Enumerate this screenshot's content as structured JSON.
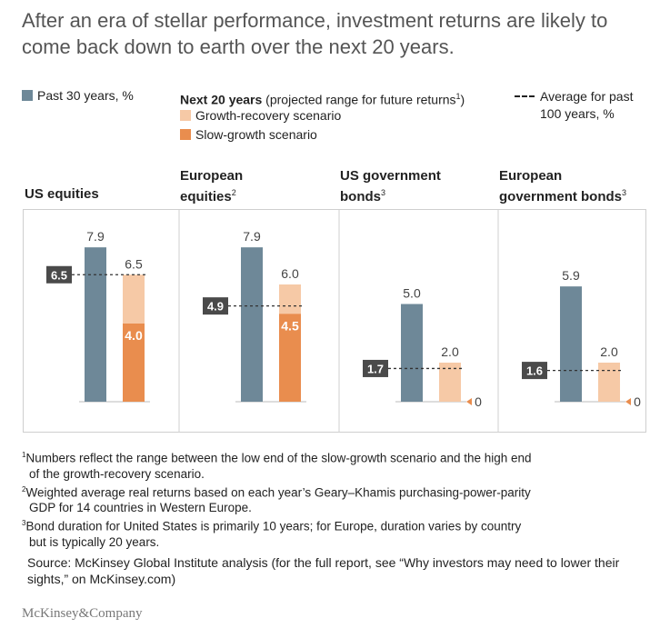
{
  "title": "After an era of stellar performance, investment returns are likely to come back down to earth over the next 20 years.",
  "legend": {
    "past": "Past 30 years, %",
    "next_bold": "Next 20 years",
    "next_rest": " (projected range for future returns",
    "next_sup": "1",
    "next_close": ")",
    "growth": "Growth-recovery scenario",
    "slow": "Slow-growth scenario",
    "avg_line1": "Average for past",
    "avg_line2": "100 years, %"
  },
  "colors": {
    "past": "#6e8898",
    "growth": "#f6c9a6",
    "slow": "#e98d4e",
    "avg_box": "#4a4a4a",
    "zero_marker": "#e98d4e"
  },
  "chart_data": {
    "type": "bar",
    "ylim": [
      0,
      8.5
    ],
    "panels": [
      {
        "name": "US equities",
        "sup": "",
        "past": 7.9,
        "slow": 4.0,
        "growth": 6.5,
        "average": 6.5,
        "past_label": "7.9",
        "growth_label": "6.5",
        "slow_label": "4.0",
        "avg_label": "6.5",
        "zero_label": ""
      },
      {
        "name": "European equities",
        "sup": "2",
        "past": 7.9,
        "slow": 4.5,
        "growth": 6.0,
        "average": 4.9,
        "past_label": "7.9",
        "growth_label": "6.0",
        "slow_label": "4.5",
        "avg_label": "4.9",
        "zero_label": ""
      },
      {
        "name": "US government bonds",
        "sup": "3",
        "past": 5.0,
        "slow": 0,
        "growth": 2.0,
        "average": 1.7,
        "past_label": "5.0",
        "growth_label": "2.0",
        "slow_label": "",
        "avg_label": "1.7",
        "zero_label": "0"
      },
      {
        "name": "European government bonds",
        "sup": "3",
        "past": 5.9,
        "slow": 0,
        "growth": 2.0,
        "average": 1.6,
        "past_label": "5.9",
        "growth_label": "2.0",
        "slow_label": "",
        "avg_label": "1.6",
        "zero_label": "0"
      }
    ]
  },
  "panel_titles": {
    "p0": "US equities",
    "p1_a": "European",
    "p1_b": "equities",
    "p1_sup": "2",
    "p2_a": "US government",
    "p2_b": "bonds",
    "p2_sup": "3",
    "p3_a": "European",
    "p3_b": "government bonds",
    "p3_sup": "3"
  },
  "footnotes": [
    {
      "sup": "1",
      "a": "Numbers reflect the range between the low end of the slow-growth scenario and the high end",
      "b": "of the growth-recovery scenario."
    },
    {
      "sup": "2",
      "a": "Weighted average real returns based on each year’s Geary–Khamis purchasing-power-parity",
      "b": "GDP for 14 countries in Western Europe."
    },
    {
      "sup": "3",
      "a": "Bond duration for United States is primarily 10 years; for Europe, duration varies by country",
      "b": "but is typically 20 years."
    }
  ],
  "source": "Source: McKinsey Global Institute analysis (for the full report, see “Why investors may need to lower their sights,” on McKinsey.com)",
  "brand": "McKinsey&Company"
}
